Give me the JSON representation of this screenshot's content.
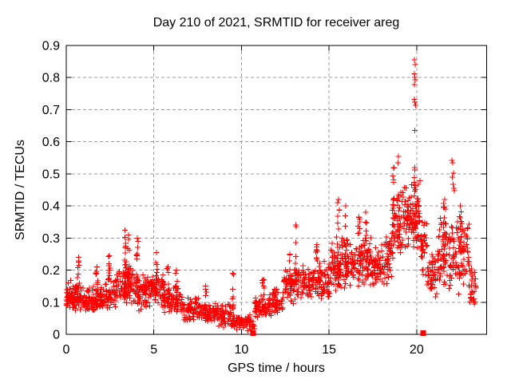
{
  "chart_data": {
    "type": "scatter",
    "title": "Day 210 of 2021, SRMTID for receiver areg",
    "xlabel": "GPS time / hours",
    "ylabel": "SRMTID / TECUs",
    "xlim": [
      0,
      24
    ],
    "ylim": [
      0,
      0.9
    ],
    "xticks": [
      [
        0,
        "0"
      ],
      [
        5,
        "5"
      ],
      [
        10,
        "10"
      ],
      [
        15,
        "15"
      ],
      [
        20,
        "20"
      ]
    ],
    "yticks": [
      [
        0,
        "0"
      ],
      [
        0.1,
        "0.1"
      ],
      [
        0.2,
        "0.2"
      ],
      [
        0.3,
        "0.3"
      ],
      [
        0.4,
        "0.4"
      ],
      [
        0.5,
        "0.5"
      ],
      [
        0.6,
        "0.6"
      ],
      [
        0.7,
        "0.7"
      ],
      [
        0.8,
        "0.8"
      ],
      [
        0.9,
        "0.9"
      ]
    ],
    "grid": true,
    "legend": "none",
    "background": "#ffffff",
    "border_color": "#000000",
    "grid_color": "#9c9c9c",
    "series": [
      {
        "name": "SRMTID",
        "marker": "plus",
        "color": "#ff0000",
        "bands": [
          [
            0.0,
            0.9,
            0.07,
            0.17,
            90
          ],
          [
            0.9,
            2.2,
            0.06,
            0.155,
            110
          ],
          [
            2.2,
            2.8,
            0.075,
            0.185,
            50
          ],
          [
            2.8,
            3.8,
            0.08,
            0.22,
            90
          ],
          [
            3.8,
            4.8,
            0.07,
            0.19,
            80
          ],
          [
            4.8,
            5.6,
            0.08,
            0.2,
            70
          ],
          [
            5.6,
            6.6,
            0.055,
            0.16,
            70
          ],
          [
            6.6,
            7.6,
            0.04,
            0.12,
            70
          ],
          [
            7.6,
            8.6,
            0.03,
            0.105,
            70
          ],
          [
            8.6,
            9.4,
            0.02,
            0.1,
            55
          ],
          [
            9.4,
            10.5,
            0.01,
            0.065,
            70
          ],
          [
            10.5,
            10.75,
            0.01,
            0.045,
            12
          ],
          [
            10.75,
            11.5,
            0.04,
            0.12,
            55
          ],
          [
            11.5,
            12.4,
            0.05,
            0.15,
            65
          ],
          [
            12.4,
            13.0,
            0.09,
            0.21,
            45
          ],
          [
            13.0,
            14.0,
            0.1,
            0.22,
            75
          ],
          [
            14.0,
            15.1,
            0.1,
            0.23,
            85
          ],
          [
            15.1,
            16.2,
            0.13,
            0.32,
            95
          ],
          [
            16.2,
            17.4,
            0.14,
            0.32,
            95
          ],
          [
            17.4,
            18.1,
            0.13,
            0.28,
            55
          ],
          [
            18.1,
            18.6,
            0.15,
            0.32,
            40
          ],
          [
            18.6,
            19.3,
            0.22,
            0.47,
            65
          ],
          [
            19.3,
            20.2,
            0.25,
            0.5,
            95
          ],
          [
            20.2,
            20.6,
            0.18,
            0.38,
            35
          ],
          [
            20.6,
            21.1,
            0.1,
            0.26,
            40
          ],
          [
            21.1,
            22.0,
            0.12,
            0.38,
            75
          ],
          [
            22.0,
            23.0,
            0.12,
            0.38,
            80
          ],
          [
            23.0,
            23.4,
            0.09,
            0.22,
            30
          ]
        ],
        "columns": [
          [
            0.7,
            0.15,
            0.24,
            8
          ],
          [
            1.75,
            0.13,
            0.21,
            7
          ],
          [
            2.45,
            0.16,
            0.245,
            10
          ],
          [
            3.35,
            0.12,
            0.325,
            16
          ],
          [
            3.55,
            0.13,
            0.31,
            12
          ],
          [
            4.05,
            0.11,
            0.3,
            12
          ],
          [
            5.15,
            0.12,
            0.255,
            10
          ],
          [
            5.8,
            0.09,
            0.21,
            8
          ],
          [
            6.3,
            0.08,
            0.2,
            8
          ],
          [
            7.95,
            0.05,
            0.15,
            7
          ],
          [
            9.5,
            0.05,
            0.19,
            10
          ],
          [
            11.25,
            0.06,
            0.17,
            8
          ],
          [
            12.75,
            0.12,
            0.25,
            8
          ],
          [
            13.1,
            0.15,
            0.34,
            12
          ],
          [
            14.3,
            0.12,
            0.28,
            10
          ],
          [
            15.55,
            0.15,
            0.42,
            14
          ],
          [
            15.95,
            0.15,
            0.4,
            12
          ],
          [
            16.7,
            0.15,
            0.365,
            10
          ],
          [
            17.1,
            0.15,
            0.38,
            10
          ],
          [
            18.7,
            0.25,
            0.52,
            10
          ],
          [
            18.95,
            0.26,
            0.555,
            8
          ],
          [
            19.9,
            0.32,
            0.52,
            14
          ],
          [
            21.6,
            0.14,
            0.42,
            12
          ],
          [
            22.5,
            0.14,
            0.4,
            12
          ]
        ],
        "outliers": [
          [
            19.87,
            0.855
          ],
          [
            19.91,
            0.84
          ],
          [
            19.86,
            0.812
          ],
          [
            19.89,
            0.8
          ],
          [
            19.92,
            0.793
          ],
          [
            19.88,
            0.778
          ],
          [
            19.86,
            0.732
          ],
          [
            19.9,
            0.724
          ],
          [
            19.93,
            0.714
          ],
          [
            19.89,
            0.635
          ],
          [
            22.02,
            0.542
          ],
          [
            22.06,
            0.534
          ],
          [
            22.1,
            0.502
          ],
          [
            22.03,
            0.49
          ],
          [
            22.08,
            0.468
          ],
          [
            22.12,
            0.455
          ],
          [
            22.16,
            0.448
          ]
        ]
      },
      {
        "name": "zero-markers",
        "marker": "filled-square",
        "color": "#ff0000",
        "points": [
          [
            10.66,
            0.004
          ],
          [
            20.38,
            0.004
          ]
        ]
      }
    ]
  }
}
